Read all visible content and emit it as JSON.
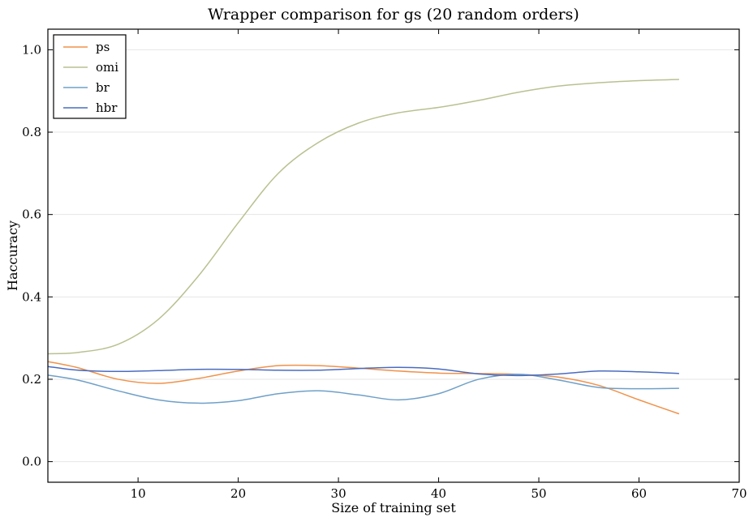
{
  "chart_data": {
    "type": "line",
    "title": "Wrapper comparison for gs (20 random orders)",
    "xlabel": "Size of training set",
    "ylabel": "Haccuracy",
    "xlim": [
      1,
      70
    ],
    "ylim": [
      -0.05,
      1.05
    ],
    "xticks": [
      10,
      20,
      30,
      40,
      50,
      60,
      70
    ],
    "yticks": [
      0.0,
      0.2,
      0.4,
      0.6,
      0.8,
      1.0
    ],
    "ytick_labels": [
      "0.0",
      "0.2",
      "0.4",
      "0.6",
      "0.8",
      "1.0"
    ],
    "grid": "horizontal",
    "legend_position": "top-left",
    "x": [
      1,
      4,
      8,
      12,
      16,
      20,
      24,
      28,
      32,
      36,
      40,
      44,
      48,
      52,
      56,
      60,
      64
    ],
    "series": [
      {
        "name": "ps",
        "color": "#f0924a",
        "values": [
          0.243,
          0.228,
          0.2,
          0.19,
          0.202,
          0.22,
          0.233,
          0.233,
          0.227,
          0.22,
          0.215,
          0.214,
          0.212,
          0.205,
          0.185,
          0.15,
          0.116
        ]
      },
      {
        "name": "omi",
        "color": "#b9c190",
        "values": [
          0.262,
          0.265,
          0.285,
          0.345,
          0.45,
          0.58,
          0.7,
          0.775,
          0.822,
          0.847,
          0.86,
          0.877,
          0.897,
          0.912,
          0.92,
          0.925,
          0.928
        ]
      },
      {
        "name": "br",
        "color": "#6fa0c8",
        "values": [
          0.21,
          0.198,
          0.172,
          0.15,
          0.142,
          0.148,
          0.165,
          0.172,
          0.162,
          0.15,
          0.165,
          0.2,
          0.212,
          0.198,
          0.18,
          0.177,
          0.178
        ]
      },
      {
        "name": "hbr",
        "color": "#4a6cc0",
        "values": [
          0.231,
          0.222,
          0.219,
          0.221,
          0.224,
          0.224,
          0.222,
          0.222,
          0.226,
          0.229,
          0.225,
          0.213,
          0.209,
          0.213,
          0.22,
          0.218,
          0.214
        ]
      }
    ]
  }
}
